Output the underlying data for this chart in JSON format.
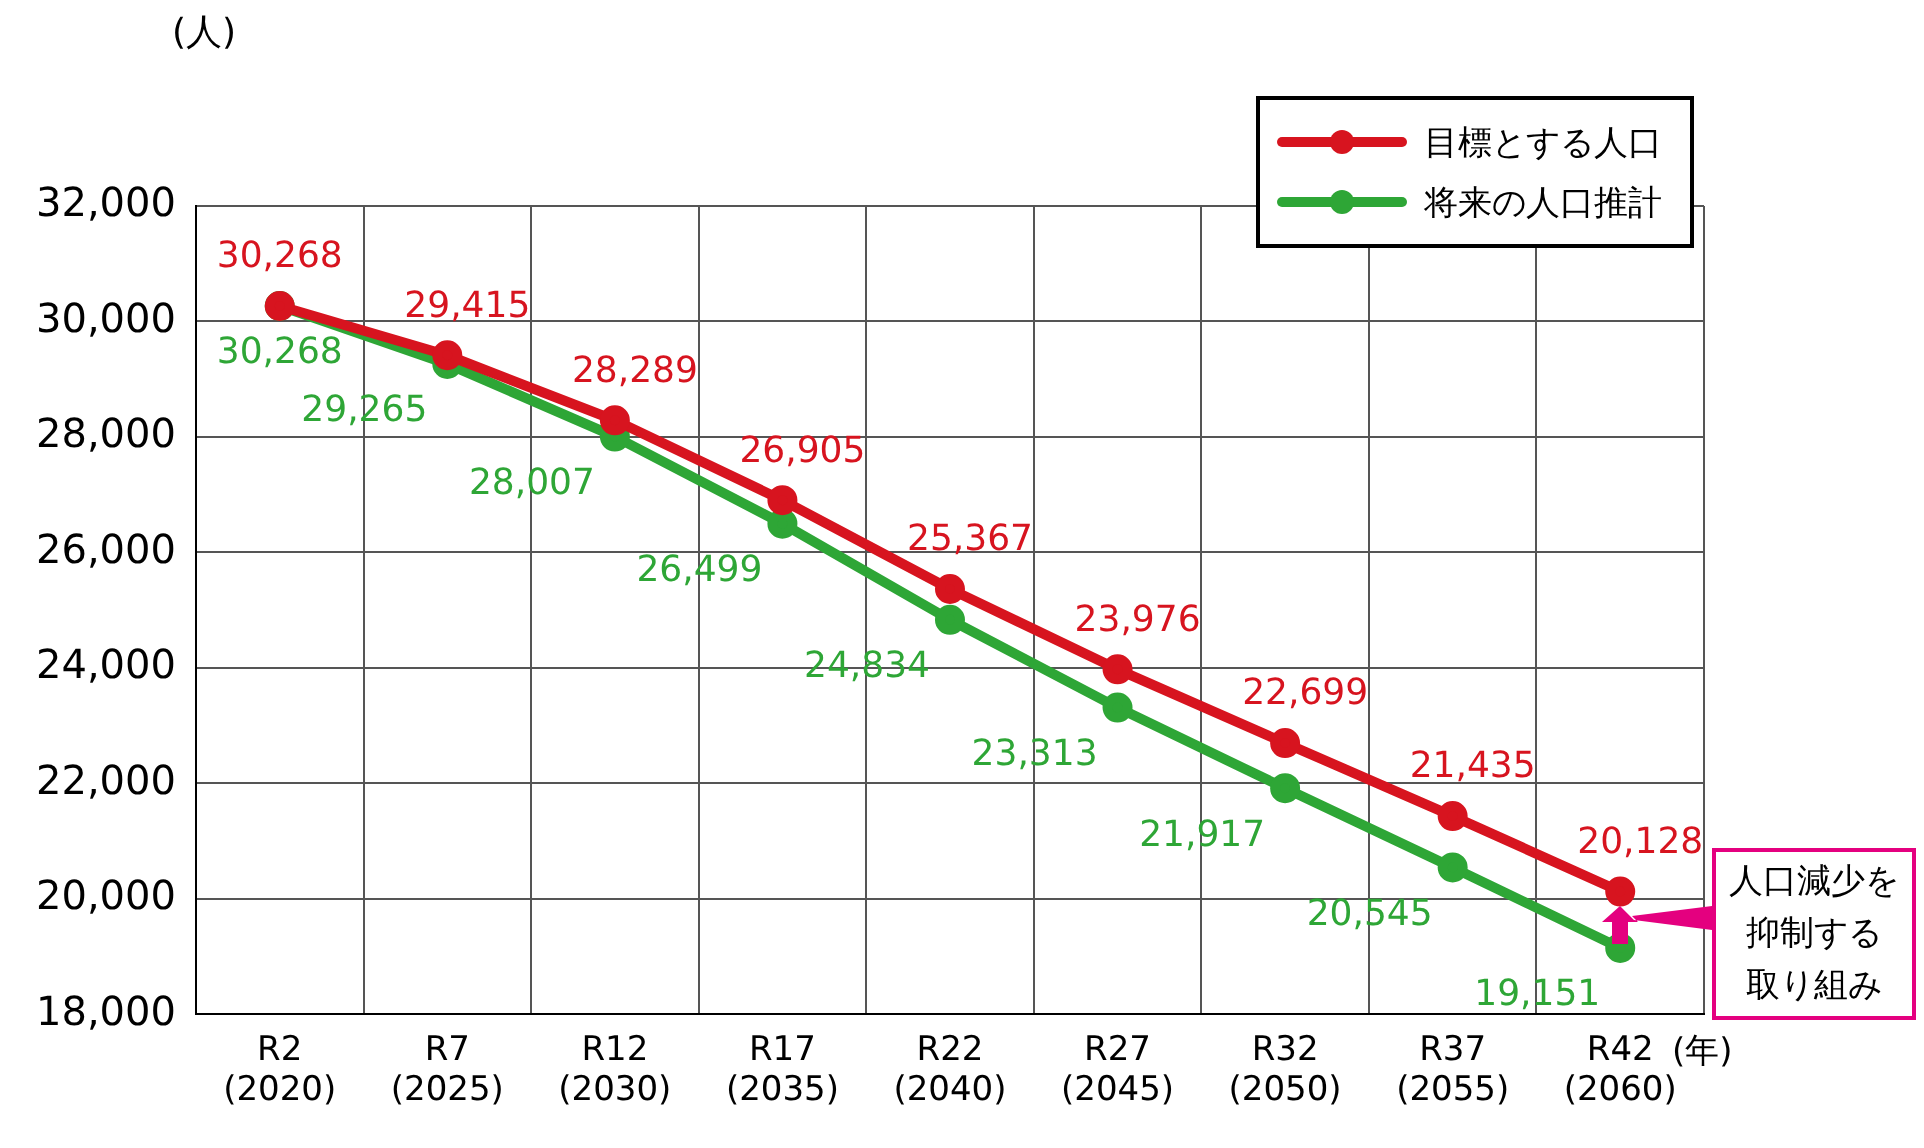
{
  "chart_data": {
    "type": "line",
    "ylabel": "(人)",
    "xlabel": "(年)",
    "categories": [
      "R2\n(2020)",
      "R7\n(2025)",
      "R12\n(2030)",
      "R17\n(2035)",
      "R22\n(2040)",
      "R27\n(2045)",
      "R32\n(2050)",
      "R37\n(2055)",
      "R42\n(2060)"
    ],
    "series": [
      {
        "name": "目標とする人口",
        "color": "#d7141f",
        "values": [
          30268,
          29415,
          28289,
          26905,
          25367,
          23976,
          22699,
          21435,
          20128
        ],
        "value_labels": [
          "30,268",
          "29,415",
          "28,289",
          "26,905",
          "25,367",
          "23,976",
          "22,699",
          "21,435",
          "20,128"
        ]
      },
      {
        "name": "将来の人口推計",
        "color": "#2ea636",
        "values": [
          30268,
          29265,
          28007,
          26499,
          24834,
          23313,
          21917,
          20545,
          19151
        ],
        "value_labels": [
          "30,268",
          "29,265",
          "28,007",
          "26,499",
          "24,834",
          "23,313",
          "21,917",
          "20,545",
          "19,151"
        ]
      }
    ],
    "ylim": [
      18000,
      32000
    ],
    "yticks": [
      {
        "value": 18000,
        "label": "18,000"
      },
      {
        "value": 20000,
        "label": "20,000"
      },
      {
        "value": 22000,
        "label": "22,000"
      },
      {
        "value": 24000,
        "label": "24,000"
      },
      {
        "value": 26000,
        "label": "26,000"
      },
      {
        "value": 28000,
        "label": "28,000"
      },
      {
        "value": 30000,
        "label": "30,000"
      },
      {
        "value": 32000,
        "label": "32,000"
      }
    ],
    "grid": true,
    "legend": "top right",
    "marker": "circle",
    "line_style": "solid",
    "annotations": [
      "人口減少を抑制する取り組み"
    ]
  }
}
